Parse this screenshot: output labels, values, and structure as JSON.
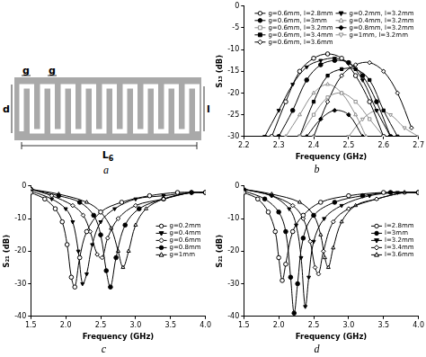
{
  "diagram": {
    "caption": "a",
    "gap_labels": [
      "g",
      "g"
    ],
    "height_label": "d",
    "arm_label": "l",
    "length_label": {
      "text": "L",
      "subscript": "6"
    }
  },
  "chart_data": [
    {
      "type": "line",
      "subtitle": "b",
      "x_label": "Frequency (GHz)",
      "y_label": "S₁₃ (dB)",
      "xlim": [
        2.2,
        2.7
      ],
      "xticks": [
        2.2,
        2.3,
        2.4,
        2.5,
        2.6,
        2.7
      ],
      "ylim": [
        -30,
        0
      ],
      "yticks": [
        -30,
        -25,
        -20,
        -15,
        -10,
        -5,
        0
      ],
      "grid": false,
      "legend": "upper right",
      "series": [
        {
          "name": "g=0.6mm, l=2.8mm",
          "color": "#000000",
          "marker": "circle-open",
          "x": [
            2.28,
            2.32,
            2.36,
            2.4,
            2.44,
            2.48,
            2.52,
            2.56,
            2.6
          ],
          "values": [
            -30,
            -22,
            -15,
            -12,
            -11,
            -12,
            -16,
            -22,
            -30
          ]
        },
        {
          "name": "g=0.6mm, l=3mm",
          "color": "#000000",
          "marker": "circle",
          "x": [
            2.3,
            2.34,
            2.38,
            2.42,
            2.46,
            2.5,
            2.54,
            2.58,
            2.62
          ],
          "values": [
            -30,
            -24,
            -17,
            -13.5,
            -12.5,
            -13,
            -16,
            -22,
            -30
          ]
        },
        {
          "name": "g=0.6mm, l=3.2mm",
          "color": "#8c8c8c",
          "marker": "square-open",
          "x": [
            2.36,
            2.4,
            2.44,
            2.48,
            2.52,
            2.56,
            2.6
          ],
          "values": [
            -30,
            -25,
            -21,
            -20,
            -22,
            -26,
            -30
          ]
        },
        {
          "name": "g=0.6mm, l=3.4mm",
          "color": "#000000",
          "marker": "square",
          "x": [
            2.36,
            2.4,
            2.44,
            2.48,
            2.52,
            2.56,
            2.6,
            2.64
          ],
          "values": [
            -30,
            -22,
            -16,
            -14.5,
            -14.5,
            -17,
            -24,
            -30
          ]
        },
        {
          "name": "g=0.6mm, l=3.6mm",
          "color": "#000000",
          "marker": "diamond-open",
          "x": [
            2.4,
            2.44,
            2.48,
            2.52,
            2.56,
            2.6,
            2.64,
            2.68
          ],
          "values": [
            -30,
            -22,
            -16,
            -13.5,
            -13,
            -15,
            -20,
            -28
          ]
        },
        {
          "name": "g=0.2mm, l=3.2mm",
          "color": "#000000",
          "marker": "triangle-down",
          "x": [
            2.26,
            2.3,
            2.34,
            2.38,
            2.42,
            2.46,
            2.5,
            2.54,
            2.58,
            2.62
          ],
          "values": [
            -30,
            -24,
            -18,
            -14,
            -12.5,
            -12,
            -13,
            -17,
            -24,
            -30
          ]
        },
        {
          "name": "g=0.4mm, l=3.2mm",
          "color": "#8c8c8c",
          "marker": "triangle-open",
          "x": [
            2.32,
            2.36,
            2.4,
            2.44,
            2.48,
            2.52,
            2.55
          ],
          "values": [
            -30,
            -25,
            -20,
            -18,
            -20,
            -25,
            -30
          ]
        },
        {
          "name": "g=0.8mm, l=3.2mm",
          "color": "#000000",
          "marker": "diamond",
          "x": [
            2.38,
            2.42,
            2.46,
            2.5,
            2.54
          ],
          "values": [
            -30,
            -26,
            -24,
            -25,
            -30
          ]
        },
        {
          "name": "g=1mm, l=3.2mm",
          "color": "#8c8c8c",
          "marker": "triangle-down-open",
          "x": [
            2.5,
            2.54,
            2.58,
            2.62,
            2.66,
            2.7
          ],
          "values": [
            -30,
            -26,
            -24,
            -25,
            -28,
            -30
          ]
        }
      ]
    },
    {
      "type": "line",
      "subtitle": "c",
      "x_label": "Frequency (GHz)",
      "y_label": "S₂₁ (dB)",
      "xlim": [
        1.5,
        4.0
      ],
      "xticks": [
        1.5,
        {
          "value": 2,
          "label": "2.0"
        },
        2.5,
        {
          "value": 3,
          "label": "3.0"
        },
        3.5,
        {
          "value": 4,
          "label": "4.0"
        }
      ],
      "ylim": [
        -40,
        0
      ],
      "yticks": [
        -40,
        -30,
        -20,
        -10,
        0
      ],
      "grid": false,
      "legend": "right",
      "series": [
        {
          "name": "g=0.2mm",
          "color": "#000000",
          "marker": "circle-open",
          "x": [
            1.5,
            1.7,
            1.85,
            1.95,
            2.02,
            2.08,
            2.13,
            2.2,
            2.3,
            2.5,
            2.8,
            3.2,
            3.6,
            4.0
          ],
          "values": [
            -2,
            -4,
            -7,
            -11,
            -18,
            -28,
            -31,
            -22,
            -14,
            -8,
            -5,
            -3,
            -2,
            -2
          ]
        },
        {
          "name": "g=0.4mm",
          "color": "#000000",
          "marker": "triangle-down",
          "x": [
            1.5,
            1.8,
            2.0,
            2.1,
            2.18,
            2.24,
            2.3,
            2.38,
            2.5,
            2.7,
            3.0,
            3.4,
            3.8,
            4.0
          ],
          "values": [
            -1.5,
            -4,
            -7,
            -11,
            -20,
            -30,
            -27,
            -18,
            -11,
            -7,
            -4,
            -3,
            -2,
            -2
          ]
        },
        {
          "name": "g=0.6mm",
          "color": "#000000",
          "marker": "diamond-open",
          "x": [
            1.5,
            1.8,
            2.1,
            2.25,
            2.35,
            2.45,
            2.52,
            2.6,
            2.75,
            3.0,
            3.4,
            3.8,
            4.0
          ],
          "values": [
            -1,
            -3,
            -6,
            -9,
            -14,
            -21,
            -22,
            -16,
            -10,
            -6,
            -4,
            -2,
            -2
          ]
        },
        {
          "name": "g=0.8mm",
          "color": "#000000",
          "marker": "circle",
          "x": [
            1.5,
            1.9,
            2.2,
            2.4,
            2.5,
            2.58,
            2.64,
            2.72,
            2.85,
            3.05,
            3.4,
            3.8,
            4.0
          ],
          "values": [
            -1,
            -3,
            -5,
            -9,
            -15,
            -26,
            -31,
            -22,
            -12,
            -7,
            -4,
            -2,
            -2
          ]
        },
        {
          "name": "g=1mm",
          "color": "#000000",
          "marker": "triangle-open",
          "x": [
            1.5,
            1.9,
            2.3,
            2.5,
            2.65,
            2.75,
            2.82,
            2.9,
            3.0,
            3.15,
            3.4,
            3.8,
            4.0
          ],
          "values": [
            -1,
            -2.5,
            -5,
            -8,
            -13,
            -20,
            -25,
            -20,
            -12,
            -7,
            -4,
            -2,
            -2
          ]
        }
      ]
    },
    {
      "type": "line",
      "subtitle": "d",
      "x_label": "Frequency (GHz)",
      "y_label": "S₂₁ (dB)",
      "xlim": [
        1.5,
        4.0
      ],
      "xticks": [
        1.5,
        {
          "value": 2,
          "label": "2.0"
        },
        2.5,
        {
          "value": 3,
          "label": "3.0"
        },
        3.5,
        {
          "value": 4,
          "label": "4.0"
        }
      ],
      "ylim": [
        -40,
        0
      ],
      "yticks": [
        -40,
        -30,
        -20,
        -10,
        0
      ],
      "grid": false,
      "legend": "right",
      "series": [
        {
          "name": "l=2.8mm",
          "color": "#000000",
          "marker": "circle-open",
          "x": [
            1.5,
            1.7,
            1.85,
            1.95,
            2.0,
            2.05,
            2.1,
            2.2,
            2.35,
            2.6,
            3.0,
            3.5,
            4.0
          ],
          "values": [
            -2,
            -4,
            -8,
            -14,
            -22,
            -29,
            -24,
            -14,
            -9,
            -5,
            -3,
            -2,
            -2
          ]
        },
        {
          "name": "l=3mm",
          "color": "#000000",
          "marker": "circle",
          "x": [
            1.5,
            1.8,
            2.0,
            2.1,
            2.17,
            2.22,
            2.27,
            2.35,
            2.5,
            2.8,
            3.2,
            3.6,
            4.0
          ],
          "values": [
            -1.5,
            -4,
            -8,
            -14,
            -28,
            -39,
            -30,
            -16,
            -9,
            -5,
            -3,
            -2,
            -2
          ]
        },
        {
          "name": "l=3.2mm",
          "color": "#000000",
          "marker": "triangle-down",
          "x": [
            1.5,
            1.9,
            2.15,
            2.25,
            2.32,
            2.38,
            2.43,
            2.5,
            2.65,
            2.9,
            3.3,
            3.7,
            4.0
          ],
          "values": [
            -1,
            -3,
            -7,
            -12,
            -22,
            -37,
            -28,
            -17,
            -10,
            -6,
            -3,
            -2,
            -2
          ]
        },
        {
          "name": "l=3.4mm",
          "color": "#000000",
          "marker": "diamond-open",
          "x": [
            1.5,
            1.9,
            2.2,
            2.35,
            2.45,
            2.52,
            2.57,
            2.64,
            2.78,
            3.0,
            3.4,
            3.8,
            4.0
          ],
          "values": [
            -1,
            -3,
            -6,
            -10,
            -17,
            -25,
            -27,
            -20,
            -11,
            -7,
            -4,
            -2,
            -2
          ]
        },
        {
          "name": "l=3.6mm",
          "color": "#000000",
          "marker": "triangle-open",
          "x": [
            1.5,
            1.9,
            2.3,
            2.5,
            2.6,
            2.66,
            2.71,
            2.78,
            2.9,
            3.1,
            3.4,
            3.8,
            4.0
          ],
          "values": [
            -1,
            -2.5,
            -5,
            -9,
            -15,
            -22,
            -25,
            -19,
            -11,
            -6,
            -4,
            -2,
            -2
          ]
        }
      ]
    }
  ]
}
